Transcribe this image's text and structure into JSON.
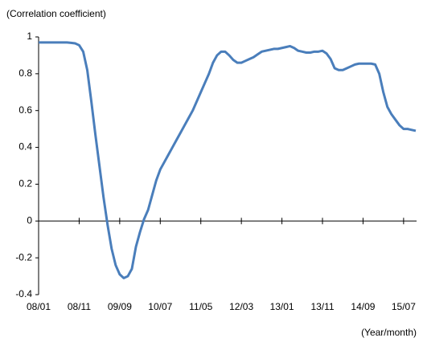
{
  "chart_data": {
    "type": "line",
    "y_label": "(Correlation coefficient)",
    "x_label": "(Year/month)",
    "categories": [
      "08/01",
      null,
      null,
      null,
      null,
      null,
      null,
      null,
      null,
      null,
      "08/11",
      null,
      null,
      null,
      null,
      null,
      null,
      null,
      null,
      null,
      "09/09",
      null,
      null,
      null,
      null,
      null,
      null,
      null,
      null,
      null,
      "10/07",
      null,
      null,
      null,
      null,
      null,
      null,
      null,
      null,
      null,
      "11/05",
      null,
      null,
      null,
      null,
      null,
      null,
      null,
      null,
      null,
      "12/03",
      null,
      null,
      null,
      null,
      null,
      null,
      null,
      null,
      null,
      "13/01",
      null,
      null,
      null,
      null,
      null,
      null,
      null,
      null,
      null,
      "13/11",
      null,
      null,
      null,
      null,
      null,
      null,
      null,
      null,
      null,
      "14/09",
      null,
      null,
      null,
      null,
      null,
      null,
      null,
      null,
      null,
      "15/07",
      null,
      null,
      null
    ],
    "values": [
      0.97,
      0.97,
      0.97,
      0.97,
      0.97,
      0.97,
      0.97,
      0.97,
      0.968,
      0.965,
      0.955,
      0.92,
      0.82,
      0.65,
      0.47,
      0.3,
      0.13,
      -0.02,
      -0.15,
      -0.24,
      -0.29,
      -0.31,
      -0.3,
      -0.26,
      -0.14,
      -0.06,
      0.01,
      0.06,
      0.14,
      0.22,
      0.28,
      0.32,
      0.36,
      0.4,
      0.44,
      0.48,
      0.52,
      0.56,
      0.6,
      0.65,
      0.7,
      0.75,
      0.8,
      0.86,
      0.9,
      0.92,
      0.92,
      0.9,
      0.875,
      0.86,
      0.86,
      0.87,
      0.88,
      0.89,
      0.905,
      0.92,
      0.925,
      0.93,
      0.935,
      0.935,
      0.94,
      0.945,
      0.95,
      0.94,
      0.925,
      0.92,
      0.915,
      0.915,
      0.92,
      0.92,
      0.925,
      0.91,
      0.88,
      0.83,
      0.82,
      0.82,
      0.83,
      0.84,
      0.85,
      0.855,
      0.855,
      0.855,
      0.855,
      0.85,
      0.8,
      0.7,
      0.62,
      0.58,
      0.55,
      0.52,
      0.5,
      0.5,
      0.495,
      0.49
    ],
    "color": "#4a7ebb",
    "ylim": [
      -0.4,
      1
    ],
    "yticks": [
      -0.4,
      -0.2,
      0,
      0.2,
      0.4,
      0.6,
      0.8,
      1
    ]
  }
}
